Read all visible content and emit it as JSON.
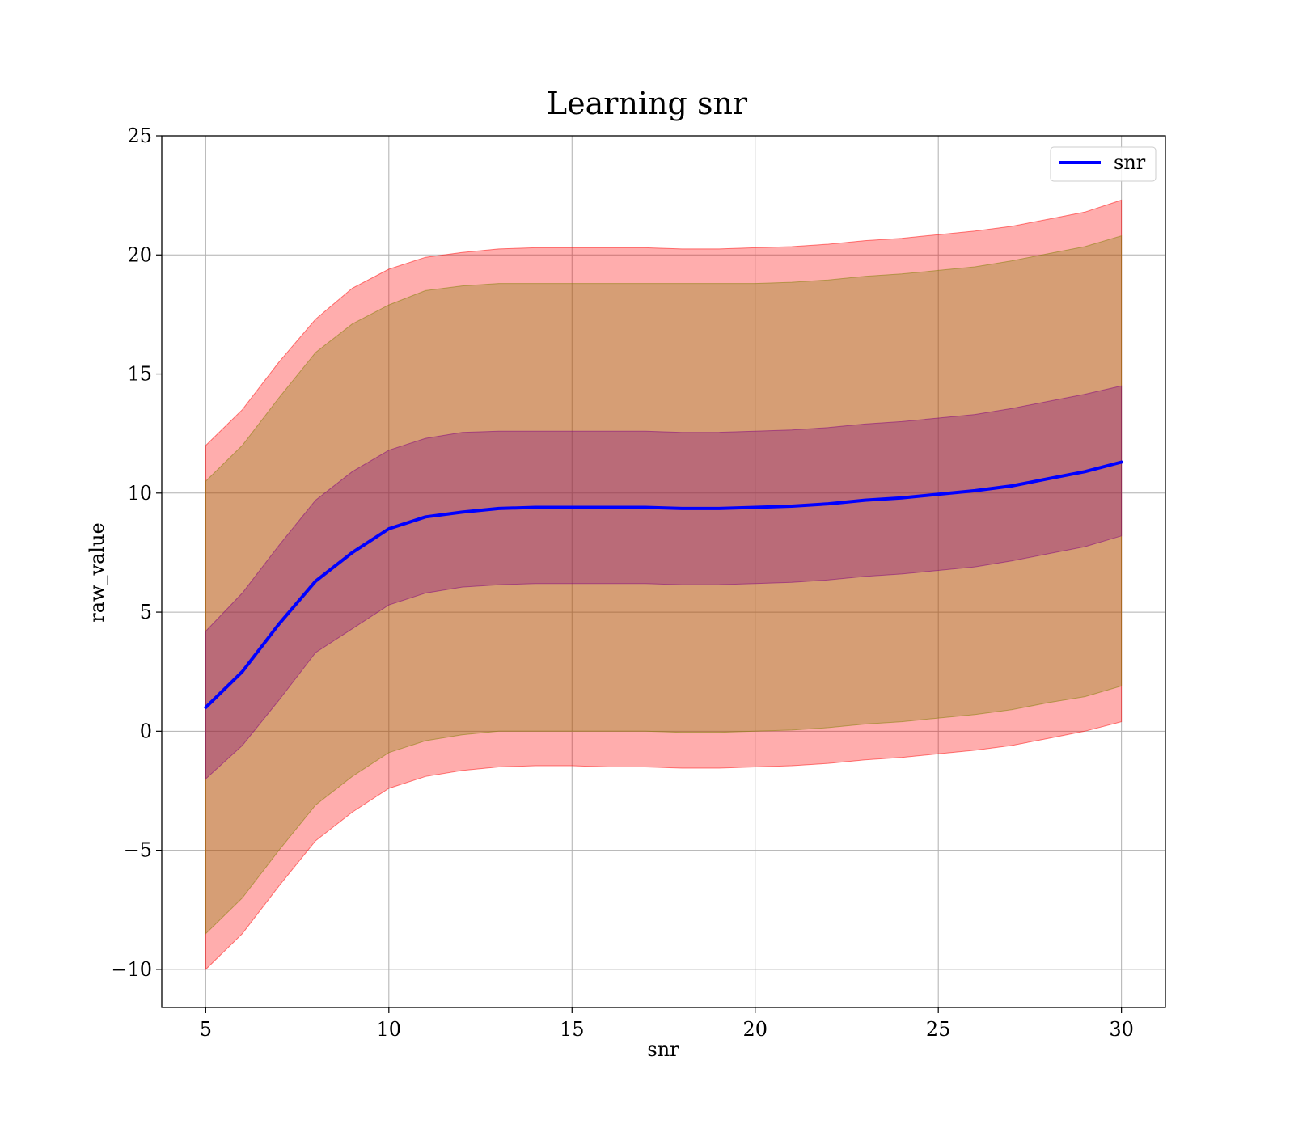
{
  "chart_data": {
    "type": "area",
    "title": "Learning snr",
    "xlabel": "snr",
    "ylabel": "raw_value",
    "xlim": [
      3.8,
      31.2
    ],
    "ylim": [
      -11.6,
      25.0
    ],
    "xticks": [
      5,
      10,
      15,
      20,
      25,
      30
    ],
    "yticks": [
      -10,
      -5,
      0,
      5,
      10,
      15,
      20,
      25
    ],
    "xtick_labels": [
      "5",
      "10",
      "15",
      "20",
      "25",
      "30"
    ],
    "ytick_labels": [
      "−10",
      "−5",
      "0",
      "5",
      "10",
      "15",
      "20",
      "25"
    ],
    "grid": true,
    "legend": {
      "position": "top-right",
      "entries": [
        "snr"
      ]
    },
    "x": [
      5,
      6,
      7,
      8,
      9,
      10,
      11,
      12,
      13,
      14,
      15,
      16,
      17,
      18,
      19,
      20,
      21,
      22,
      23,
      24,
      25,
      26,
      27,
      28,
      29,
      30
    ],
    "series": [
      {
        "name": "snr",
        "color": "#0000ff",
        "values": [
          1.0,
          2.5,
          4.5,
          6.3,
          7.5,
          8.5,
          9.0,
          9.2,
          9.35,
          9.4,
          9.4,
          9.4,
          9.4,
          9.35,
          9.35,
          9.4,
          9.45,
          9.55,
          9.7,
          9.8,
          9.95,
          10.1,
          10.3,
          10.6,
          10.9,
          11.3
        ]
      }
    ],
    "bands": [
      {
        "color": "#ff0000",
        "opacity": 0.32,
        "upper": [
          12.0,
          13.5,
          15.5,
          17.3,
          18.6,
          19.4,
          19.9,
          20.1,
          20.25,
          20.3,
          20.3,
          20.3,
          20.3,
          20.25,
          20.25,
          20.3,
          20.35,
          20.45,
          20.6,
          20.7,
          20.85,
          21.0,
          21.2,
          21.5,
          21.8,
          22.3
        ],
        "lower": [
          -10.0,
          -8.5,
          -6.5,
          -4.6,
          -3.4,
          -2.4,
          -1.9,
          -1.65,
          -1.5,
          -1.45,
          -1.45,
          -1.5,
          -1.5,
          -1.55,
          -1.55,
          -1.5,
          -1.45,
          -1.35,
          -1.2,
          -1.1,
          -0.95,
          -0.8,
          -0.6,
          -0.3,
          0.0,
          0.4
        ]
      },
      {
        "color": "#808000",
        "opacity": 0.32,
        "upper": [
          10.5,
          12.0,
          14.0,
          15.9,
          17.1,
          17.9,
          18.5,
          18.7,
          18.8,
          18.8,
          18.8,
          18.8,
          18.8,
          18.8,
          18.8,
          18.8,
          18.85,
          18.95,
          19.1,
          19.2,
          19.35,
          19.5,
          19.75,
          20.05,
          20.35,
          20.8
        ],
        "lower": [
          -8.5,
          -7.0,
          -5.0,
          -3.1,
          -1.9,
          -0.9,
          -0.4,
          -0.15,
          0.0,
          0.0,
          0.0,
          0.0,
          0.0,
          -0.05,
          -0.05,
          0.0,
          0.05,
          0.15,
          0.3,
          0.4,
          0.55,
          0.7,
          0.9,
          1.2,
          1.45,
          1.9
        ]
      },
      {
        "color": "#800080",
        "opacity": 0.32,
        "upper": [
          4.2,
          5.8,
          7.8,
          9.7,
          10.9,
          11.8,
          12.3,
          12.55,
          12.6,
          12.6,
          12.6,
          12.6,
          12.6,
          12.55,
          12.55,
          12.6,
          12.65,
          12.75,
          12.9,
          13.0,
          13.15,
          13.3,
          13.55,
          13.85,
          14.15,
          14.5
        ],
        "lower": [
          -2.0,
          -0.6,
          1.3,
          3.3,
          4.3,
          5.3,
          5.8,
          6.05,
          6.15,
          6.2,
          6.2,
          6.2,
          6.2,
          6.15,
          6.15,
          6.2,
          6.25,
          6.35,
          6.5,
          6.6,
          6.75,
          6.9,
          7.15,
          7.45,
          7.75,
          8.2
        ]
      }
    ]
  }
}
